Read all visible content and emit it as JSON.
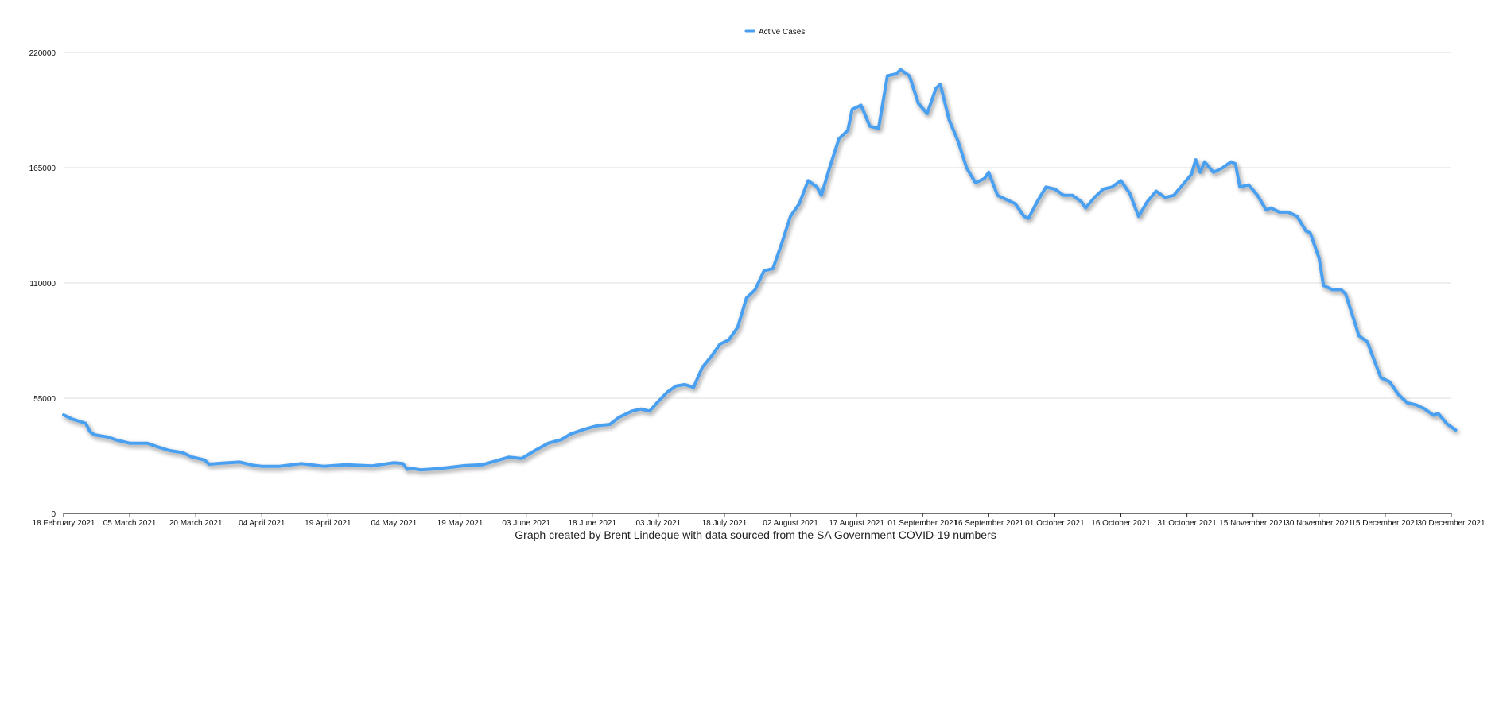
{
  "chart_data": {
    "type": "line",
    "title": "",
    "xlabel": "",
    "ylabel": "",
    "caption": "Graph created by Brent Lindeque with data sourced from the SA Government COVID-19 numbers",
    "legend": {
      "placement": "top-center",
      "entries": [
        "Active Cases"
      ]
    },
    "grid": true,
    "ylim": [
      0,
      220000
    ],
    "yticks": [
      "0",
      "55000",
      "110000",
      "165000",
      "220000"
    ],
    "xlim": [
      "2021-02-18",
      "2021-12-30"
    ],
    "xticks": [
      "18 February 2021",
      "05 March 2021",
      "20 March 2021",
      "04 April 2021",
      "19 April 2021",
      "04 May 2021",
      "19 May 2021",
      "03 June 2021",
      "18 June 2021",
      "03 July 2021",
      "18 July 2021",
      "02 August 2021",
      "17 August 2021",
      "01 September 2021",
      "16 September 2021",
      "01 October 2021",
      "16 October 2021",
      "31 October 2021",
      "15 November 2021",
      "30 November 2021",
      "15 December 2021",
      "30 December 2021"
    ],
    "series": [
      {
        "name": "Active Cases",
        "color": "#4a9ff0",
        "points": [
          [
            "2021-02-18",
            47000
          ],
          [
            "2021-02-20",
            45000
          ],
          [
            "2021-02-23",
            43000
          ],
          [
            "2021-02-24",
            39000
          ],
          [
            "2021-02-25",
            37500
          ],
          [
            "2021-02-28",
            36500
          ],
          [
            "2021-03-02",
            35000
          ],
          [
            "2021-03-05",
            33500
          ],
          [
            "2021-03-09",
            33500
          ],
          [
            "2021-03-11",
            32000
          ],
          [
            "2021-03-14",
            30000
          ],
          [
            "2021-03-17",
            29000
          ],
          [
            "2021-03-19",
            27000
          ],
          [
            "2021-03-22",
            25500
          ],
          [
            "2021-03-23",
            23500
          ],
          [
            "2021-03-26",
            24000
          ],
          [
            "2021-03-30",
            24500
          ],
          [
            "2021-04-02",
            23000
          ],
          [
            "2021-04-04",
            22500
          ],
          [
            "2021-04-08",
            22500
          ],
          [
            "2021-04-13",
            23800
          ],
          [
            "2021-04-18",
            22500
          ],
          [
            "2021-04-23",
            23200
          ],
          [
            "2021-04-29",
            22700
          ],
          [
            "2021-05-04",
            24200
          ],
          [
            "2021-05-06",
            23800
          ],
          [
            "2021-05-07",
            21000
          ],
          [
            "2021-05-08",
            21500
          ],
          [
            "2021-05-10",
            20800
          ],
          [
            "2021-05-13",
            21200
          ],
          [
            "2021-05-16",
            21800
          ],
          [
            "2021-05-20",
            22800
          ],
          [
            "2021-05-24",
            23200
          ],
          [
            "2021-05-27",
            25000
          ],
          [
            "2021-05-30",
            26800
          ],
          [
            "2021-06-02",
            26200
          ],
          [
            "2021-06-05",
            30000
          ],
          [
            "2021-06-08",
            33500
          ],
          [
            "2021-06-11",
            35200
          ],
          [
            "2021-06-13",
            37800
          ],
          [
            "2021-06-16",
            40000
          ],
          [
            "2021-06-19",
            41800
          ],
          [
            "2021-06-22",
            42500
          ],
          [
            "2021-06-24",
            45800
          ],
          [
            "2021-06-27",
            48800
          ],
          [
            "2021-06-29",
            49800
          ],
          [
            "2021-07-01",
            48800
          ],
          [
            "2021-07-03",
            53500
          ],
          [
            "2021-07-05",
            57800
          ],
          [
            "2021-07-07",
            60800
          ],
          [
            "2021-07-09",
            61500
          ],
          [
            "2021-07-11",
            60200
          ],
          [
            "2021-07-13",
            69800
          ],
          [
            "2021-07-15",
            74800
          ],
          [
            "2021-07-17",
            80800
          ],
          [
            "2021-07-19",
            82800
          ],
          [
            "2021-07-21",
            88800
          ],
          [
            "2021-07-23",
            102800
          ],
          [
            "2021-07-25",
            106800
          ],
          [
            "2021-07-27",
            115800
          ],
          [
            "2021-07-29",
            116800
          ],
          [
            "2021-07-31",
            128800
          ],
          [
            "2021-08-02",
            141800
          ],
          [
            "2021-08-04",
            147800
          ],
          [
            "2021-08-06",
            158800
          ],
          [
            "2021-08-08",
            155800
          ],
          [
            "2021-08-09",
            151800
          ],
          [
            "2021-08-11",
            165800
          ],
          [
            "2021-08-13",
            178800
          ],
          [
            "2021-08-15",
            182800
          ],
          [
            "2021-08-16",
            192800
          ],
          [
            "2021-08-18",
            194800
          ],
          [
            "2021-08-20",
            184800
          ],
          [
            "2021-08-22",
            183800
          ],
          [
            "2021-08-24",
            208800
          ],
          [
            "2021-08-26",
            209800
          ],
          [
            "2021-08-27",
            211800
          ],
          [
            "2021-08-29",
            208800
          ],
          [
            "2021-08-31",
            195800
          ],
          [
            "2021-09-02",
            190800
          ],
          [
            "2021-09-04",
            202800
          ],
          [
            "2021-09-05",
            204800
          ],
          [
            "2021-09-07",
            187800
          ],
          [
            "2021-09-09",
            177800
          ],
          [
            "2021-09-11",
            164800
          ],
          [
            "2021-09-13",
            157800
          ],
          [
            "2021-09-15",
            159800
          ],
          [
            "2021-09-16",
            162800
          ],
          [
            "2021-09-18",
            151800
          ],
          [
            "2021-09-20",
            149800
          ],
          [
            "2021-09-22",
            147800
          ],
          [
            "2021-09-24",
            141800
          ],
          [
            "2021-09-25",
            140800
          ],
          [
            "2021-09-27",
            148800
          ],
          [
            "2021-09-29",
            155800
          ],
          [
            "2021-10-01",
            154800
          ],
          [
            "2021-10-03",
            151800
          ],
          [
            "2021-10-05",
            151800
          ],
          [
            "2021-10-07",
            148800
          ],
          [
            "2021-10-08",
            145800
          ],
          [
            "2021-10-10",
            150800
          ],
          [
            "2021-10-12",
            154800
          ],
          [
            "2021-10-14",
            155800
          ],
          [
            "2021-10-16",
            158800
          ],
          [
            "2021-10-18",
            152800
          ],
          [
            "2021-10-20",
            141800
          ],
          [
            "2021-10-22",
            148800
          ],
          [
            "2021-10-24",
            153800
          ],
          [
            "2021-10-26",
            150800
          ],
          [
            "2021-10-28",
            151800
          ],
          [
            "2021-10-30",
            156800
          ],
          [
            "2021-11-01",
            161800
          ],
          [
            "2021-11-02",
            168800
          ],
          [
            "2021-11-03",
            162800
          ],
          [
            "2021-11-04",
            167800
          ],
          [
            "2021-11-06",
            162800
          ],
          [
            "2021-11-08",
            164800
          ],
          [
            "2021-11-10",
            167800
          ],
          [
            "2021-11-11",
            166800
          ],
          [
            "2021-11-12",
            155800
          ],
          [
            "2021-11-14",
            156800
          ],
          [
            "2021-11-16",
            151800
          ],
          [
            "2021-11-18",
            144800
          ],
          [
            "2021-11-19",
            145800
          ],
          [
            "2021-11-21",
            143800
          ],
          [
            "2021-11-23",
            143800
          ],
          [
            "2021-11-25",
            141800
          ],
          [
            "2021-11-27",
            134800
          ],
          [
            "2021-11-28",
            133800
          ],
          [
            "2021-11-30",
            121800
          ],
          [
            "2021-12-01",
            108800
          ],
          [
            "2021-12-03",
            106800
          ],
          [
            "2021-12-05",
            106800
          ],
          [
            "2021-12-06",
            104800
          ],
          [
            "2021-12-08",
            91800
          ],
          [
            "2021-12-09",
            84800
          ],
          [
            "2021-12-11",
            81800
          ],
          [
            "2021-12-12",
            75800
          ],
          [
            "2021-12-14",
            64800
          ],
          [
            "2021-12-16",
            62800
          ],
          [
            "2021-12-18",
            56800
          ],
          [
            "2021-12-20",
            52800
          ],
          [
            "2021-12-22",
            51800
          ],
          [
            "2021-12-24",
            49800
          ],
          [
            "2021-12-26",
            46800
          ],
          [
            "2021-12-27",
            47800
          ],
          [
            "2021-12-29",
            42800
          ],
          [
            "2021-12-31",
            39800
          ]
        ]
      }
    ]
  }
}
